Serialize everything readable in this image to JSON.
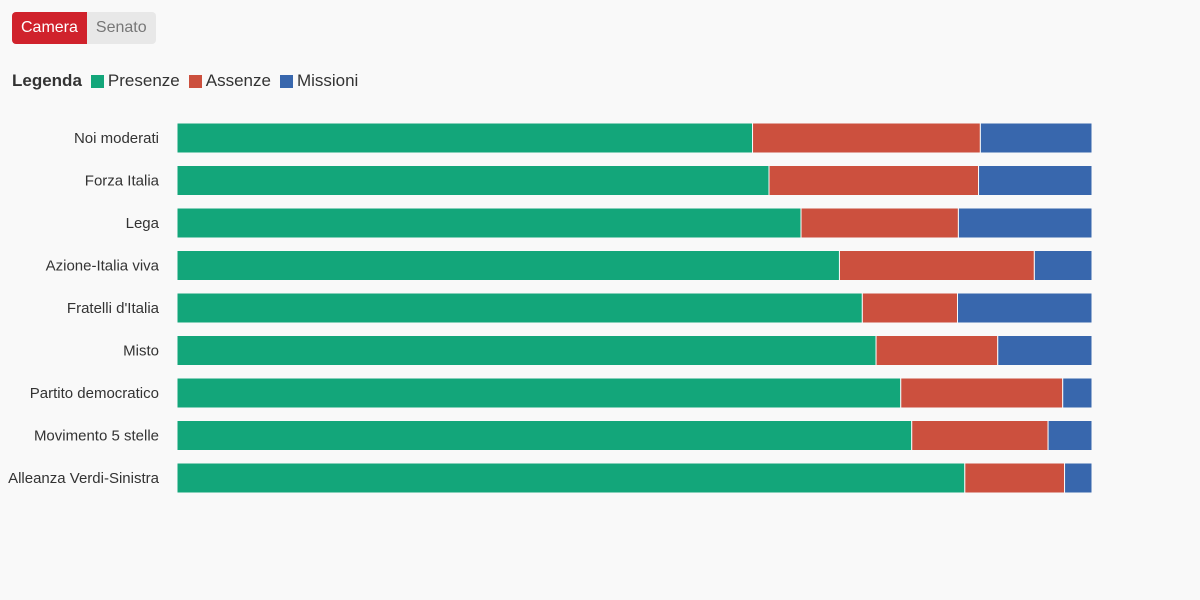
{
  "tabs": [
    {
      "label": "Camera",
      "active": true
    },
    {
      "label": "Senato",
      "active": false
    }
  ],
  "legend": {
    "title": "Legenda",
    "items": [
      {
        "label": "Presenze",
        "color": "#13a67a"
      },
      {
        "label": "Assenze",
        "color": "#cc503e"
      },
      {
        "label": "Missioni",
        "color": "#3867ad"
      }
    ]
  },
  "chart_data": {
    "type": "bar",
    "orientation": "horizontal",
    "stacked": true,
    "percent": true,
    "categories": [
      "Noi moderati",
      "Forza Italia",
      "Lega",
      "Azione-Italia viva",
      "Fratelli d'Italia",
      "Misto",
      "Partito democratico",
      "Movimento 5 stelle",
      "Alleanza Verdi-Sinistra"
    ],
    "series": [
      {
        "name": "Presenze",
        "color": "#13a67a",
        "values": [
          62.9,
          64.7,
          68.2,
          72.4,
          74.9,
          76.4,
          79.1,
          80.3,
          86.1
        ]
      },
      {
        "name": "Assenze",
        "color": "#cc503e",
        "values": [
          24.9,
          22.9,
          17.2,
          21.3,
          10.4,
          13.3,
          17.7,
          14.9,
          10.9
        ]
      },
      {
        "name": "Missioni",
        "color": "#3867ad",
        "values": [
          12.2,
          12.4,
          14.6,
          6.3,
          14.7,
          10.3,
          3.2,
          4.8,
          3.0
        ]
      }
    ],
    "xlim": [
      0,
      100
    ],
    "grid": false,
    "legend_position": "top-left"
  }
}
